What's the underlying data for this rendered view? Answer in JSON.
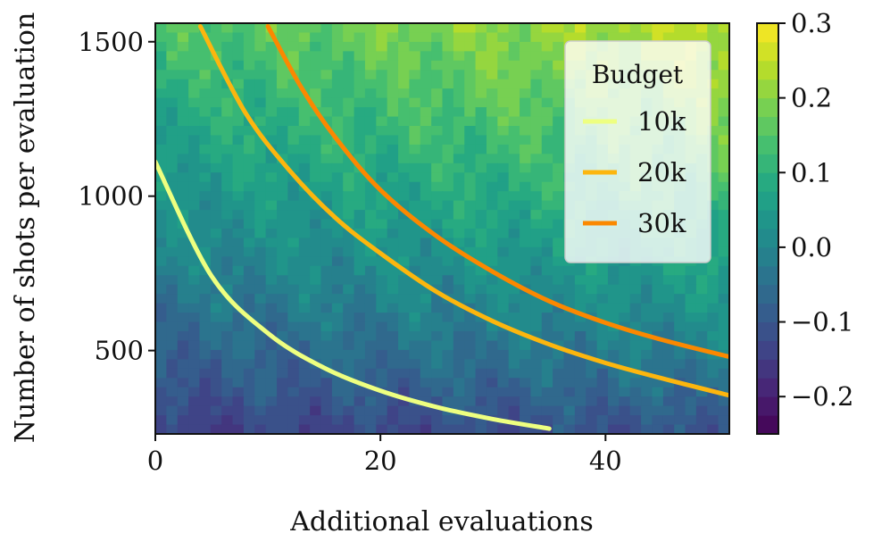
{
  "chart_data": {
    "type": "heatmap",
    "title": "",
    "xlabel": "Additional evaluations",
    "ylabel": "Number of shots per evaluation",
    "xlim": [
      0,
      51
    ],
    "ylim": [
      230,
      1560
    ],
    "xticks": [
      0,
      20,
      40
    ],
    "yticks": [
      500,
      1000,
      1500
    ],
    "colorbar": {
      "label": "",
      "range": [
        -0.25,
        0.3
      ],
      "ticks": [
        0.3,
        0.2,
        0.1,
        0.0,
        -0.1,
        -0.2
      ],
      "tick_labels": [
        "0.3",
        "0.2",
        "0.1",
        "0.0",
        "−0.1",
        "−0.2"
      ],
      "levels": [
        -0.25,
        -0.225,
        -0.2,
        -0.175,
        -0.15,
        -0.125,
        -0.1,
        -0.075,
        -0.05,
        -0.025,
        0.0,
        0.025,
        0.05,
        0.075,
        0.1,
        0.125,
        0.15,
        0.175,
        0.2,
        0.225,
        0.25,
        0.275,
        0.3
      ],
      "colormap": "viridis"
    },
    "heatmap_description": {
      "trend": "value increases with shots per evaluation and with additional evaluations",
      "value_at_bottom_left": -0.15,
      "value_at_top_right": 0.25
    },
    "legend": {
      "title": "Budget",
      "location": "top-right",
      "entries": [
        "10k",
        "20k",
        "30k"
      ]
    },
    "series": [
      {
        "name": "10k",
        "budget": 10000,
        "color": "#eeff80",
        "x": [
          0,
          5,
          10,
          15,
          20,
          25,
          30,
          35
        ],
        "y": [
          1111,
          741,
          556,
          444,
          370,
          317,
          278,
          247
        ]
      },
      {
        "name": "20k",
        "budget": 20000,
        "color": "#fcb60e",
        "x": [
          4,
          8,
          12,
          16,
          20,
          25,
          30,
          35,
          40,
          45,
          51
        ],
        "y": [
          1550,
          1270,
          1080,
          930,
          815,
          690,
          595,
          520,
          460,
          410,
          355
        ]
      },
      {
        "name": "30k",
        "budget": 30000,
        "color": "#fb8800",
        "x": [
          10,
          13,
          16,
          20,
          25,
          30,
          35,
          40,
          45,
          51
        ],
        "y": [
          1550,
          1350,
          1190,
          1020,
          870,
          755,
          660,
          590,
          535,
          480
        ]
      }
    ]
  }
}
